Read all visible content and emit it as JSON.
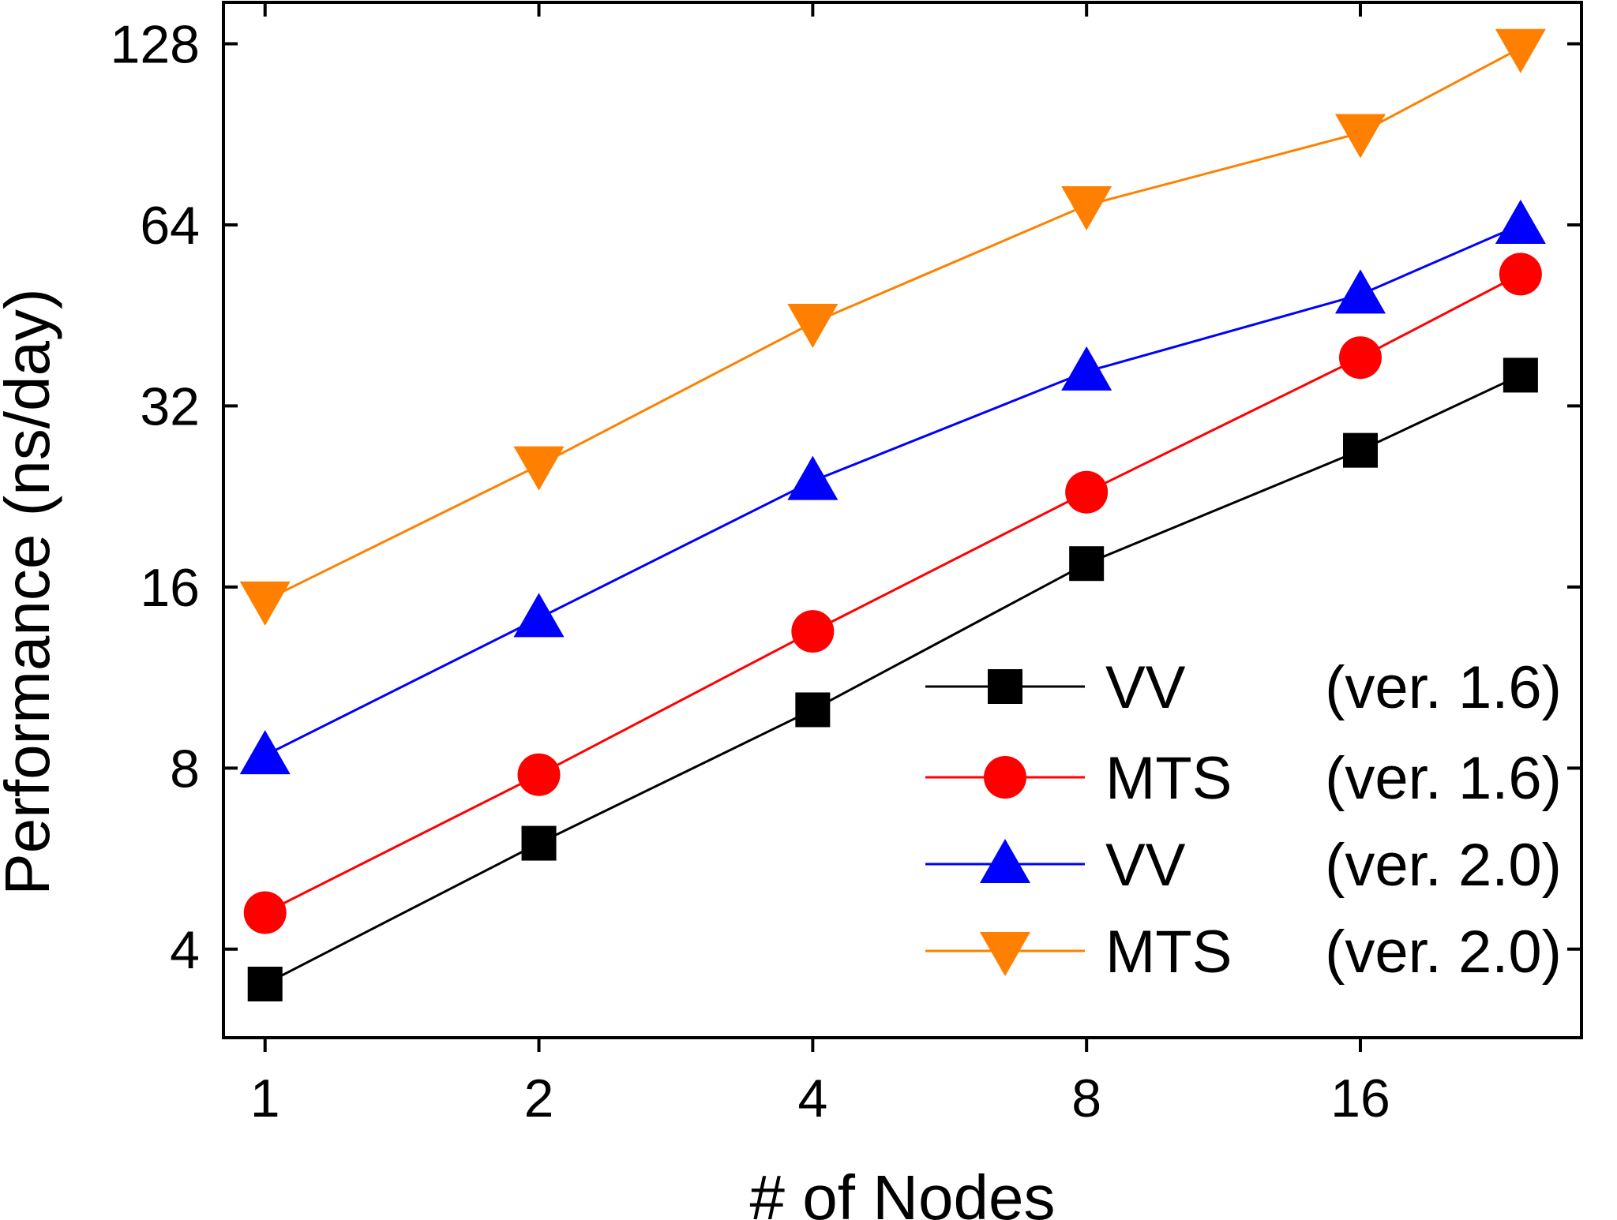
{
  "chart_data": {
    "type": "line",
    "title": "",
    "xlabel": "# of Nodes",
    "ylabel": "Performance (ns/day)",
    "xscale": "log2",
    "yscale": "log2",
    "x": [
      1,
      2,
      4,
      8,
      16,
      24
    ],
    "xticks": [
      "1",
      "2",
      "4",
      "8",
      "16"
    ],
    "yticks": [
      "4",
      "8",
      "16",
      "32",
      "64",
      "128"
    ],
    "xlim": [
      0.9,
      28
    ],
    "ylim": [
      2.85,
      150
    ],
    "grid": false,
    "legend_position": "bottom-right",
    "series": [
      {
        "name": "VV",
        "version": "(ver. 1.6)",
        "marker": "square",
        "color": "#000000",
        "values": [
          3.5,
          6.0,
          10.0,
          17.5,
          27.0,
          36.0
        ]
      },
      {
        "name": "MTS",
        "version": "(ver. 1.6)",
        "marker": "circle",
        "color": "#ff0000",
        "values": [
          4.6,
          7.8,
          13.5,
          23.0,
          38.5,
          53.0
        ]
      },
      {
        "name": "VV",
        "version": "(ver. 2.0)",
        "marker": "triangle-up",
        "color": "#0000ff",
        "values": [
          8.4,
          14.2,
          24.0,
          36.5,
          49.0,
          64.0
        ]
      },
      {
        "name": "MTS",
        "version": "(ver. 2.0)",
        "marker": "triangle-down",
        "color": "#ff8000",
        "values": [
          15.2,
          25.5,
          44.0,
          69.0,
          91.0,
          126.0
        ]
      }
    ]
  }
}
